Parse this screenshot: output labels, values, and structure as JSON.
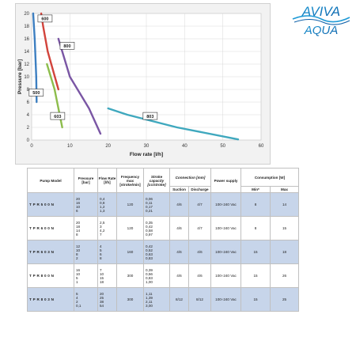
{
  "chart_data": {
    "type": "line",
    "xlabel": "Flow rate [l/h]",
    "ylabel": "Pressure [bar]",
    "xlim": [
      0,
      60
    ],
    "ylim": [
      0,
      20
    ],
    "xticks": [
      0,
      10,
      20,
      30,
      40,
      50,
      60
    ],
    "yticks": [
      0,
      2,
      4,
      6,
      8,
      10,
      12,
      14,
      16,
      18,
      20
    ],
    "grid": true,
    "series": [
      {
        "name": "500",
        "color": "#3d7fc1",
        "x": [
          0.4,
          0.8,
          1.2,
          1.3
        ],
        "y": [
          20,
          16,
          10,
          6
        ],
        "label_at": [
          1.2,
          7.5
        ]
      },
      {
        "name": "600",
        "color": "#d2443c",
        "x": [
          2.5,
          3,
          4.2,
          7
        ],
        "y": [
          20,
          18,
          14,
          8
        ],
        "label_at": [
          3.5,
          19.2
        ]
      },
      {
        "name": "603",
        "color": "#8dbd4c",
        "x": [
          4,
          5,
          6,
          8
        ],
        "y": [
          12,
          10,
          8,
          2
        ],
        "label_at": [
          6.8,
          3.8
        ]
      },
      {
        "name": "800",
        "color": "#7a56a4",
        "x": [
          7,
          10,
          15,
          18
        ],
        "y": [
          16,
          10,
          5,
          1
        ],
        "label_at": [
          9.3,
          14.9
        ]
      },
      {
        "name": "803",
        "color": "#3fa8be",
        "x": [
          20,
          25,
          38,
          54
        ],
        "y": [
          5,
          4,
          2,
          0.1
        ],
        "label_at": [
          31,
          3.8
        ]
      }
    ]
  },
  "logo": {
    "top": "AVIVA",
    "bottom": "AQUA"
  },
  "table": {
    "headers": {
      "model": "Pump Model",
      "pressure": "Pressure [bar]",
      "flow": "Flow Rate [l/h]",
      "frequency": "Frequency max [stroke/min]",
      "stroke": "Stroke capacity [cc/stroke]",
      "connection": "Connection [mm]",
      "suction": "Suction",
      "discharge": "Discharge",
      "power": "Power supply",
      "consumption": "Consumption [W]",
      "min": "Min*",
      "max": "Max"
    },
    "rows": [
      {
        "model": "TPR500N",
        "pressure": "20\n16\n10\n6",
        "flow": "0,4\n0,8\n1,2\n1,3",
        "frequency": "120",
        "stroke": "0,06\n0,11\n0,17\n0,21",
        "suction": "4/6",
        "discharge": "4/7",
        "power": "100÷240 Vac",
        "min": "8",
        "max": "14"
      },
      {
        "model": "TPR600N",
        "pressure": "20\n18\n14\n8",
        "flow": "2,5\n3\n4,2\n7",
        "frequency": "120",
        "stroke": "0,35\n0,42\n0,58\n0,97",
        "suction": "4/6",
        "discharge": "4/7",
        "power": "100÷240 Vac",
        "min": "8",
        "max": "15"
      },
      {
        "model": "TPR603N",
        "pressure": "12\n10\n8\n2",
        "flow": "4\n5\n6\n8",
        "frequency": "160",
        "stroke": "0,42\n0,52\n0,63\n0,83",
        "suction": "4/6",
        "discharge": "4/6",
        "power": "100÷240 Vac",
        "min": "15",
        "max": "18"
      },
      {
        "model": "TPR800N",
        "pressure": "16\n10\n5\n1",
        "flow": "7\n10\n15\n18",
        "frequency": "300",
        "stroke": "0,39\n0,56\n0,83\n1,00",
        "suction": "4/6",
        "discharge": "4/6",
        "power": "100÷240 Vac",
        "min": "15",
        "max": "26"
      },
      {
        "model": "TPR803N",
        "pressure": "5\n4\n2\n0,1",
        "flow": "20\n25\n38\n54",
        "frequency": "300",
        "stroke": "1,11\n1,39\n2,11\n3,00",
        "suction": "8/12",
        "discharge": "8/12",
        "power": "100÷240 Vac",
        "min": "15",
        "max": "25"
      }
    ]
  }
}
